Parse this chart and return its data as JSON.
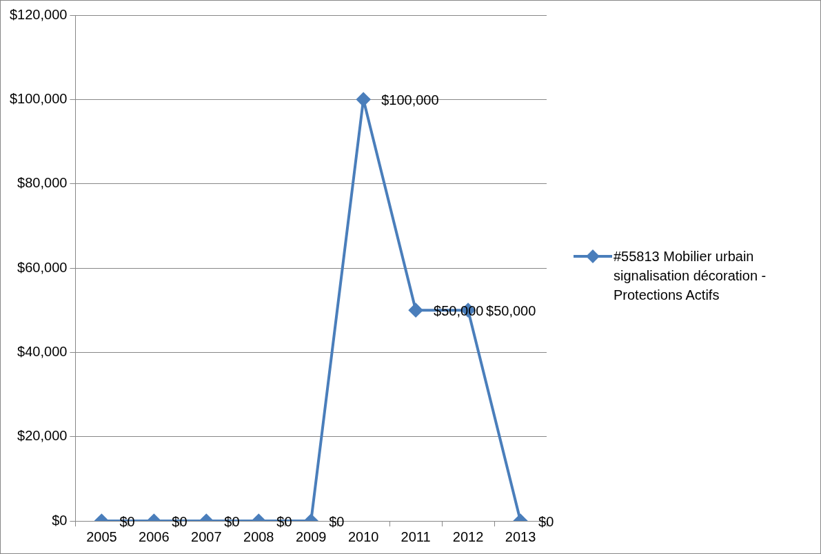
{
  "chart_data": {
    "type": "line",
    "categories": [
      "2005",
      "2006",
      "2007",
      "2008",
      "2009",
      "2010",
      "2011",
      "2012",
      "2013"
    ],
    "series": [
      {
        "name": "#55813 Mobilier urbain signalisation décoration - Protections Actifs",
        "color": "#4a7ebb",
        "values": [
          0,
          0,
          0,
          0,
          0,
          100000,
          50000,
          50000,
          0
        ],
        "value_labels": [
          "$0",
          "$0",
          "$0",
          "$0",
          "$0",
          "$100,000",
          "$50,000",
          "$50,000",
          "$0"
        ]
      }
    ],
    "ylim": [
      0,
      120000
    ],
    "yticks": [
      {
        "value": 0,
        "label": "$0"
      },
      {
        "value": 20000,
        "label": "$20,000"
      },
      {
        "value": 40000,
        "label": "$40,000"
      },
      {
        "value": 60000,
        "label": "$60,000"
      },
      {
        "value": 80000,
        "label": "$80,000"
      },
      {
        "value": 100000,
        "label": "$100,000"
      },
      {
        "value": 120000,
        "label": "$120,000"
      }
    ],
    "grid": "y",
    "legend": "right",
    "marker": "diamond",
    "line_style": "solid"
  }
}
